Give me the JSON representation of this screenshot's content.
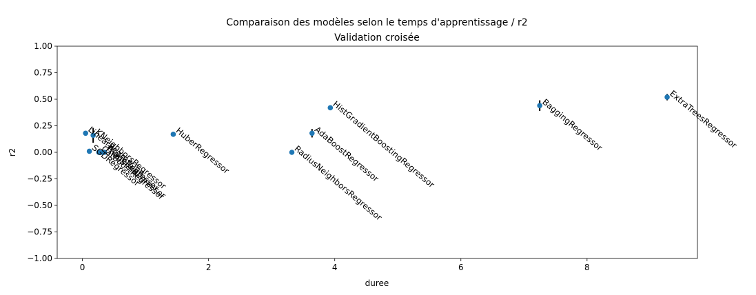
{
  "chart_data": {
    "type": "scatter",
    "title": "Comparaison des modèles selon le temps d'apprentissage / r2",
    "subtitle": "Validation croisée",
    "xlabel": "duree",
    "ylabel": "r2",
    "xlim": [
      -0.4,
      9.75
    ],
    "ylim": [
      -1.0,
      1.0
    ],
    "xticks": [
      0,
      2,
      4,
      6,
      8
    ],
    "yticks": [
      -1.0,
      -0.75,
      -0.5,
      -0.25,
      0.0,
      0.25,
      0.5,
      0.75,
      1.0
    ],
    "xtick_labels": [
      "0",
      "2",
      "4",
      "6",
      "8"
    ],
    "ytick_labels": [
      "−1.00",
      "−0.75",
      "−0.50",
      "−0.25",
      "0.00",
      "0.25",
      "0.50",
      "0.75",
      "1.00"
    ],
    "grid": false,
    "marker_color": "#1f77b4",
    "errorbar_color": "#000000",
    "points": [
      {
        "label": "LinearRegression",
        "x": 0.05,
        "y": 0.18,
        "err": 0.02
      },
      {
        "label": "SGDRegressor",
        "x": 0.11,
        "y": 0.01,
        "err": 0.01
      },
      {
        "label": "KNeighborsRegressor",
        "x": 0.17,
        "y": 0.16,
        "err": 0.07
      },
      {
        "label": "CatBoostRegressor",
        "x": 0.26,
        "y": 0.0,
        "err": 0.0
      },
      {
        "label": "TheilSenRegressor",
        "x": 0.31,
        "y": 0.0,
        "err": 0.0
      },
      {
        "label": "RidgeRegressor",
        "x": 0.35,
        "y": 0.0,
        "err": 0.0
      },
      {
        "label": "HuberRegressor",
        "x": 1.44,
        "y": 0.17,
        "err": 0.02
      },
      {
        "label": "RadiusNeighborsRegressor",
        "x": 3.32,
        "y": 0.0,
        "err": 0.0
      },
      {
        "label": "AdaBoostRegressor",
        "x": 3.64,
        "y": 0.18,
        "err": 0.04
      },
      {
        "label": "HistGradientBoostingRegressor",
        "x": 3.93,
        "y": 0.42,
        "err": 0.02
      },
      {
        "label": "BaggingRegressor",
        "x": 7.25,
        "y": 0.44,
        "err": 0.05
      },
      {
        "label": "ExtraTreesRegressor",
        "x": 9.27,
        "y": 0.52,
        "err": 0.03
      }
    ]
  }
}
